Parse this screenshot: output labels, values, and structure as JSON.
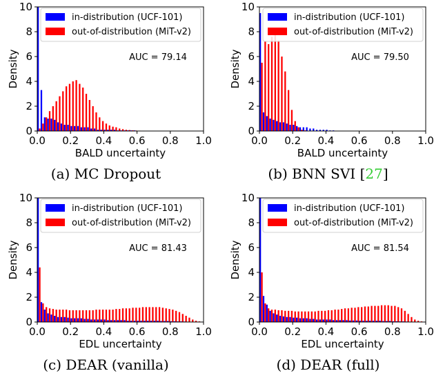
{
  "chart_data": [
    {
      "type": "bar",
      "xlabel": "BALD uncertainty",
      "ylabel": "Density",
      "xlim": [
        0,
        1.0
      ],
      "ylim": [
        0,
        10
      ],
      "xticks": [
        "0.0",
        "0.2",
        "0.4",
        "0.6",
        "0.8",
        "1.0"
      ],
      "yticks": [
        "0",
        "2",
        "4",
        "6",
        "8",
        "10"
      ],
      "annotation": "AUC = 79.14",
      "legend_position": "top",
      "caption": "(a) MC Dropout",
      "caption_cite": "",
      "bin_width": 0.02,
      "series": [
        {
          "name": "in-distribution (UCF-101)",
          "color": "#0000ff",
          "values": [
            10.0,
            3.3,
            1.1,
            1.0,
            1.0,
            0.9,
            0.7,
            0.6,
            0.5,
            0.5,
            0.4,
            0.4,
            0.4,
            0.3,
            0.3,
            0.3,
            0.2,
            0.2,
            0.1,
            0.1,
            0.1,
            0.1,
            0.1,
            0.1,
            0.05,
            0.05,
            0.05,
            0.05,
            0.05,
            0.05,
            0,
            0,
            0,
            0,
            0,
            0,
            0,
            0,
            0,
            0,
            0,
            0,
            0,
            0,
            0,
            0,
            0,
            0,
            0,
            0
          ]
        },
        {
          "name": "out-of-distribution (MiT-v2)",
          "color": "#ff0000",
          "values": [
            0.2,
            0.6,
            1.1,
            1.6,
            2.0,
            2.4,
            2.8,
            3.2,
            3.6,
            3.8,
            4.0,
            4.1,
            3.8,
            3.5,
            3.0,
            2.5,
            2.0,
            1.5,
            1.1,
            0.8,
            0.6,
            0.45,
            0.35,
            0.3,
            0.2,
            0.15,
            0.1,
            0.08,
            0.06,
            0.04,
            0.03,
            0.02,
            0.01,
            0.01,
            0,
            0,
            0,
            0,
            0,
            0,
            0,
            0,
            0,
            0,
            0,
            0,
            0,
            0,
            0,
            0
          ]
        }
      ]
    },
    {
      "type": "bar",
      "xlabel": "BALD uncertainty",
      "ylabel": "Density",
      "xlim": [
        0,
        1.0
      ],
      "ylim": [
        0,
        10
      ],
      "xticks": [
        "0.0",
        "0.2",
        "0.4",
        "0.6",
        "0.8",
        "1.0"
      ],
      "yticks": [
        "0",
        "2",
        "4",
        "6",
        "8",
        "10"
      ],
      "annotation": "AUC = 79.50",
      "legend_position": "top",
      "caption": "(b) BNN SVI [",
      "caption_cite": "27",
      "caption_end": "]",
      "bin_width": 0.02,
      "series": [
        {
          "name": "in-distribution (UCF-101)",
          "color": "#0000ff",
          "values": [
            9.5,
            1.5,
            1.2,
            1.0,
            0.9,
            0.8,
            0.7,
            0.7,
            0.6,
            0.5,
            0.5,
            0.4,
            0.3,
            0.3,
            0.3,
            0.2,
            0.2,
            0.1,
            0.1,
            0.1,
            0.1,
            0.05,
            0.05,
            0,
            0,
            0,
            0,
            0,
            0,
            0,
            0,
            0,
            0,
            0,
            0,
            0,
            0,
            0,
            0,
            0,
            0,
            0,
            0,
            0,
            0,
            0,
            0,
            0,
            0,
            0
          ]
        },
        {
          "name": "out-of-distribution (MiT-v2)",
          "color": "#ff0000",
          "values": [
            5.5,
            7.2,
            7.0,
            7.6,
            8.0,
            7.3,
            6.0,
            4.8,
            3.3,
            1.7,
            0.8,
            0.3,
            0.1,
            0.05,
            0.02,
            0,
            0,
            0,
            0,
            0,
            0,
            0,
            0,
            0,
            0,
            0,
            0,
            0,
            0,
            0,
            0,
            0,
            0,
            0,
            0,
            0,
            0,
            0,
            0,
            0,
            0,
            0,
            0,
            0,
            0,
            0,
            0,
            0,
            0,
            0
          ]
        }
      ]
    },
    {
      "type": "bar",
      "xlabel": "EDL uncertainty",
      "ylabel": "Density",
      "xlim": [
        0,
        1.0
      ],
      "ylim": [
        0,
        10
      ],
      "xticks": [
        "0.0",
        "0.2",
        "0.4",
        "0.6",
        "0.8",
        "1.0"
      ],
      "yticks": [
        "0",
        "2",
        "4",
        "6",
        "8",
        "10"
      ],
      "annotation": "AUC = 81.43",
      "legend_position": "top",
      "caption": "(c) DEAR (vanilla)",
      "caption_cite": "",
      "bin_width": 0.02,
      "series": [
        {
          "name": "in-distribution (UCF-101)",
          "color": "#0000ff",
          "values": [
            10.0,
            1.6,
            1.0,
            0.7,
            0.6,
            0.5,
            0.4,
            0.4,
            0.4,
            0.35,
            0.3,
            0.3,
            0.3,
            0.3,
            0.25,
            0.25,
            0.2,
            0.2,
            0.2,
            0.2,
            0.2,
            0.15,
            0.15,
            0.15,
            0.15,
            0.15,
            0.15,
            0.1,
            0.1,
            0.1,
            0.1,
            0.1,
            0.1,
            0.1,
            0.1,
            0.1,
            0.1,
            0.08,
            0.08,
            0.08,
            0.06,
            0.06,
            0.05,
            0.05,
            0.04,
            0.03,
            0.02,
            0.01,
            0,
            0
          ]
        },
        {
          "name": "out-of-distribution (MiT-v2)",
          "color": "#ff0000",
          "values": [
            4.4,
            1.5,
            1.2,
            1.1,
            1.05,
            1.0,
            1.0,
            1.0,
            1.0,
            0.95,
            0.95,
            0.95,
            0.95,
            0.95,
            0.95,
            0.95,
            0.95,
            1.0,
            1.0,
            1.0,
            1.0,
            1.0,
            1.0,
            1.05,
            1.05,
            1.1,
            1.1,
            1.1,
            1.15,
            1.15,
            1.15,
            1.2,
            1.2,
            1.2,
            1.2,
            1.2,
            1.2,
            1.15,
            1.1,
            1.05,
            1.0,
            0.9,
            0.8,
            0.65,
            0.5,
            0.35,
            0.2,
            0.1,
            0.05,
            0.02
          ]
        }
      ]
    },
    {
      "type": "bar",
      "xlabel": "EDL uncertainty",
      "ylabel": "Density",
      "xlim": [
        0,
        1.0
      ],
      "ylim": [
        0,
        10
      ],
      "xticks": [
        "0.0",
        "0.2",
        "0.4",
        "0.6",
        "0.8",
        "1.0"
      ],
      "yticks": [
        "0",
        "2",
        "4",
        "6",
        "8",
        "10"
      ],
      "annotation": "AUC = 81.54",
      "legend_position": "top",
      "caption": "(d) DEAR (full)",
      "caption_cite": "",
      "bin_width": 0.02,
      "series": [
        {
          "name": "in-distribution (UCF-101)",
          "color": "#0000ff",
          "values": [
            10.0,
            2.1,
            1.4,
            0.9,
            0.7,
            0.6,
            0.5,
            0.45,
            0.4,
            0.4,
            0.35,
            0.35,
            0.3,
            0.3,
            0.3,
            0.25,
            0.25,
            0.2,
            0.2,
            0.2,
            0.2,
            0.2,
            0.15,
            0.15,
            0.15,
            0.15,
            0.15,
            0.12,
            0.12,
            0.12,
            0.1,
            0.1,
            0.1,
            0.1,
            0.1,
            0.1,
            0.1,
            0.08,
            0.08,
            0.08,
            0.06,
            0.06,
            0.05,
            0.05,
            0.04,
            0.03,
            0.02,
            0.01,
            0,
            0
          ]
        },
        {
          "name": "out-of-distribution (MiT-v2)",
          "color": "#ff0000",
          "values": [
            4.0,
            1.5,
            1.1,
            1.0,
            1.0,
            0.95,
            0.95,
            0.9,
            0.9,
            0.9,
            0.85,
            0.85,
            0.85,
            0.85,
            0.85,
            0.85,
            0.85,
            0.9,
            0.9,
            0.9,
            0.95,
            0.95,
            1.0,
            1.0,
            1.05,
            1.1,
            1.1,
            1.15,
            1.15,
            1.2,
            1.2,
            1.25,
            1.25,
            1.3,
            1.3,
            1.3,
            1.35,
            1.35,
            1.35,
            1.3,
            1.3,
            1.2,
            1.1,
            0.9,
            0.65,
            0.4,
            0.2,
            0.1,
            0.05,
            0.02
          ]
        }
      ]
    }
  ]
}
